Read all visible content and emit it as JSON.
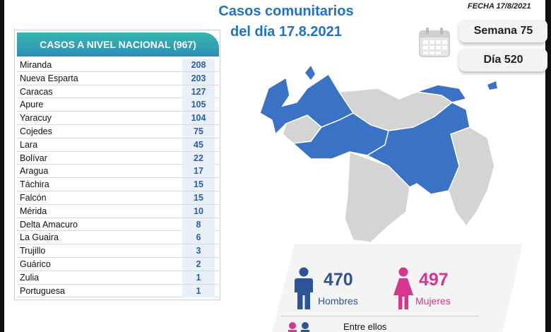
{
  "title_line1": "Casos comunitarios",
  "title_line2": "del día 17.8.2021",
  "fecha": "FECHA 17/8/2021",
  "semana": "Semana 75",
  "dia": "Día 520",
  "table": {
    "header": "CASOS A NIVEL NACIONAL (967)",
    "rows": [
      {
        "state": "Miranda",
        "count": "208"
      },
      {
        "state": "Nueva Esparta",
        "count": "203"
      },
      {
        "state": "Caracas",
        "count": "127"
      },
      {
        "state": "Apure",
        "count": "105"
      },
      {
        "state": "Yaracuy",
        "count": "104"
      },
      {
        "state": "Cojedes",
        "count": "75"
      },
      {
        "state": "Lara",
        "count": "45"
      },
      {
        "state": "Bolívar",
        "count": "22"
      },
      {
        "state": "Aragua",
        "count": "17"
      },
      {
        "state": "Táchira",
        "count": "15"
      },
      {
        "state": "Falcón",
        "count": "15"
      },
      {
        "state": "Mérida",
        "count": "10"
      },
      {
        "state": "Delta Amacuro",
        "count": "8"
      },
      {
        "state": "La Guaira",
        "count": "6"
      },
      {
        "state": "Trujillo",
        "count": "3"
      },
      {
        "state": "Guárico",
        "count": "2"
      },
      {
        "state": "Zulia",
        "count": "1"
      },
      {
        "state": "Portuguesa",
        "count": "1"
      }
    ]
  },
  "gender": {
    "hombres_count": "470",
    "hombres_label": "Hombres",
    "mujeres_count": "497",
    "mujeres_label": "Mujeres",
    "entre_ellos": "Entre ellos"
  },
  "colors": {
    "accent_blue": "#1f72c9",
    "map_blue": "#3a73c6",
    "map_grey": "#d4d4d4",
    "male": "#2f5496",
    "female": "#d6368f",
    "header_teal": "#38b6b0"
  },
  "icons": [
    "calendar-icon",
    "male-person-icon",
    "female-person-icon",
    "group-icon"
  ]
}
